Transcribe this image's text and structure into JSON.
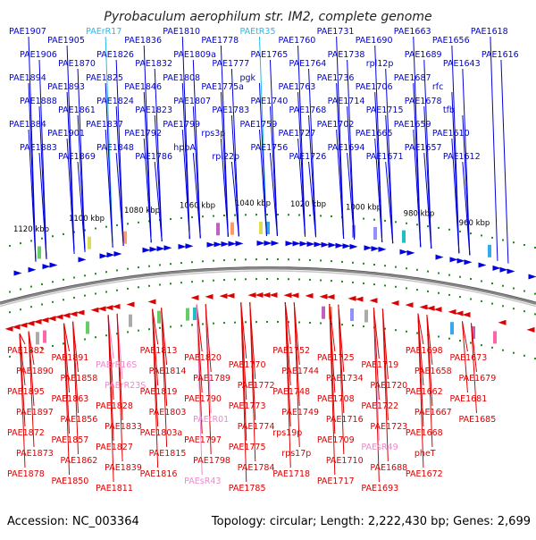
{
  "title": "Pyrobaculum aerophilum str. IM2, complete genome",
  "accession": "Accession: NC_003364",
  "summary": "Topology: circular; Length: 2,222,430 bp; Genes: 2,699",
  "colors": {
    "forward": "#0000dd",
    "reverse": "#dd0000",
    "trna": "#22bbee",
    "rna_rev": "#ee88cc",
    "backbone": "#888888",
    "tick": "#228822"
  },
  "scale": {
    "labels": [
      "1120 kbp",
      "1100 kbp",
      "1080 kbp",
      "1060 kbp",
      "1040 kbp",
      "1020 kbp",
      "1000 kbp",
      "980 kbp",
      "960 kbp"
    ],
    "positions_kbp": [
      1120,
      1100,
      1080,
      1060,
      1040,
      1020,
      1000,
      980,
      960
    ]
  },
  "forward_genes": [
    {
      "name": "PAE1907",
      "kind": "gene"
    },
    {
      "name": "PAE1906",
      "kind": "gene"
    },
    {
      "name": "PAE1894",
      "kind": "gene"
    },
    {
      "name": "PAE1888",
      "kind": "gene"
    },
    {
      "name": "PAE1884",
      "kind": "gene"
    },
    {
      "name": "PAE1883",
      "kind": "gene"
    },
    {
      "name": "PAE1905",
      "kind": "gene"
    },
    {
      "name": "PAE1870",
      "kind": "gene"
    },
    {
      "name": "PAE1893",
      "kind": "gene"
    },
    {
      "name": "PAE1861",
      "kind": "gene"
    },
    {
      "name": "PAE1901",
      "kind": "gene"
    },
    {
      "name": "PAE1869",
      "kind": "gene"
    },
    {
      "name": "PAErR17",
      "kind": "rna"
    },
    {
      "name": "PAE1826",
      "kind": "gene"
    },
    {
      "name": "PAE1825",
      "kind": "gene"
    },
    {
      "name": "PAE1824",
      "kind": "gene"
    },
    {
      "name": "PAE1837",
      "kind": "gene"
    },
    {
      "name": "PAE1848",
      "kind": "gene"
    },
    {
      "name": "PAE1836",
      "kind": "gene"
    },
    {
      "name": "PAE1832",
      "kind": "gene"
    },
    {
      "name": "PAE1846",
      "kind": "gene"
    },
    {
      "name": "PAE1823",
      "kind": "gene"
    },
    {
      "name": "PAE1792",
      "kind": "gene"
    },
    {
      "name": "PAE1786",
      "kind": "gene"
    },
    {
      "name": "PAE1810",
      "kind": "gene"
    },
    {
      "name": "PAE1809a",
      "kind": "gene"
    },
    {
      "name": "PAE1808",
      "kind": "gene"
    },
    {
      "name": "PAE1807",
      "kind": "gene"
    },
    {
      "name": "PAE1799",
      "kind": "gene"
    },
    {
      "name": "hppA",
      "kind": "gene"
    },
    {
      "name": "PAE1778",
      "kind": "gene"
    },
    {
      "name": "PAE1777",
      "kind": "gene"
    },
    {
      "name": "PAE1775a",
      "kind": "gene"
    },
    {
      "name": "PAE1783",
      "kind": "gene"
    },
    {
      "name": "rps3p",
      "kind": "gene"
    },
    {
      "name": "rpl22p",
      "kind": "gene"
    },
    {
      "name": "PAEtR35",
      "kind": "rna"
    },
    {
      "name": "PAE1765",
      "kind": "gene"
    },
    {
      "name": "pgk",
      "kind": "gene"
    },
    {
      "name": "PAE1740",
      "kind": "gene"
    },
    {
      "name": "PAE1759",
      "kind": "gene"
    },
    {
      "name": "PAE1756",
      "kind": "gene"
    },
    {
      "name": "PAE1760",
      "kind": "gene"
    },
    {
      "name": "PAE1764",
      "kind": "gene"
    },
    {
      "name": "PAE1763",
      "kind": "gene"
    },
    {
      "name": "PAE1768",
      "kind": "gene"
    },
    {
      "name": "PAE1727",
      "kind": "gene"
    },
    {
      "name": "PAE1726",
      "kind": "gene"
    },
    {
      "name": "PAE1731",
      "kind": "gene"
    },
    {
      "name": "PAE1738",
      "kind": "gene"
    },
    {
      "name": "PAE1736",
      "kind": "gene"
    },
    {
      "name": "PAE1714",
      "kind": "gene"
    },
    {
      "name": "PAE1702",
      "kind": "gene"
    },
    {
      "name": "PAE1694",
      "kind": "gene"
    },
    {
      "name": "PAE1690",
      "kind": "gene"
    },
    {
      "name": "rpl12p",
      "kind": "gene"
    },
    {
      "name": "PAE1706",
      "kind": "gene"
    },
    {
      "name": "PAE1715",
      "kind": "gene"
    },
    {
      "name": "PAE1665",
      "kind": "gene"
    },
    {
      "name": "PAE1671",
      "kind": "gene"
    },
    {
      "name": "PAE1663",
      "kind": "gene"
    },
    {
      "name": "PAE1689",
      "kind": "gene"
    },
    {
      "name": "PAE1687",
      "kind": "gene"
    },
    {
      "name": "PAE1678",
      "kind": "gene"
    },
    {
      "name": "PAE1659",
      "kind": "gene"
    },
    {
      "name": "PAE1657",
      "kind": "gene"
    },
    {
      "name": "PAE1656",
      "kind": "gene"
    },
    {
      "name": "PAE1643",
      "kind": "gene"
    },
    {
      "name": "rfc",
      "kind": "gene"
    },
    {
      "name": "tfb",
      "kind": "gene"
    },
    {
      "name": "PAE1610",
      "kind": "gene"
    },
    {
      "name": "PAE1612",
      "kind": "gene"
    },
    {
      "name": "PAE1618",
      "kind": "gene"
    },
    {
      "name": "PAE1616",
      "kind": "gene"
    }
  ],
  "reverse_genes": [
    {
      "name": "PAE1882",
      "kind": "gene"
    },
    {
      "name": "PAE1890",
      "kind": "gene"
    },
    {
      "name": "PAE1895",
      "kind": "gene"
    },
    {
      "name": "PAE1897",
      "kind": "gene"
    },
    {
      "name": "PAE1872",
      "kind": "gene"
    },
    {
      "name": "PAE1873",
      "kind": "gene"
    },
    {
      "name": "PAE1878",
      "kind": "gene"
    },
    {
      "name": "PAE1891",
      "kind": "gene"
    },
    {
      "name": "PAE1858",
      "kind": "gene"
    },
    {
      "name": "PAE1863",
      "kind": "gene"
    },
    {
      "name": "PAE1856",
      "kind": "gene"
    },
    {
      "name": "PAE1857",
      "kind": "gene"
    },
    {
      "name": "PAE1862",
      "kind": "gene"
    },
    {
      "name": "PAE1850",
      "kind": "gene"
    },
    {
      "name": "PAErR16S",
      "kind": "rna"
    },
    {
      "name": "PAErR23S",
      "kind": "rna"
    },
    {
      "name": "PAE1828",
      "kind": "gene"
    },
    {
      "name": "PAE1833",
      "kind": "gene"
    },
    {
      "name": "PAE1827",
      "kind": "gene"
    },
    {
      "name": "PAE1839",
      "kind": "gene"
    },
    {
      "name": "PAE1811",
      "kind": "gene"
    },
    {
      "name": "PAE1813",
      "kind": "gene"
    },
    {
      "name": "PAE1814",
      "kind": "gene"
    },
    {
      "name": "PAE1819",
      "kind": "gene"
    },
    {
      "name": "PAE1803",
      "kind": "gene"
    },
    {
      "name": "PAE1803a",
      "kind": "gene"
    },
    {
      "name": "PAE1815",
      "kind": "gene"
    },
    {
      "name": "PAE1816",
      "kind": "gene"
    },
    {
      "name": "PAE1820",
      "kind": "gene"
    },
    {
      "name": "PAE1789",
      "kind": "gene"
    },
    {
      "name": "PAE1790",
      "kind": "gene"
    },
    {
      "name": "PAEtR01",
      "kind": "rna"
    },
    {
      "name": "PAE1797",
      "kind": "gene"
    },
    {
      "name": "PAE1798",
      "kind": "gene"
    },
    {
      "name": "PAEsR43",
      "kind": "rna"
    },
    {
      "name": "PAE1770",
      "kind": "gene"
    },
    {
      "name": "PAE1772",
      "kind": "gene"
    },
    {
      "name": "PAE1773",
      "kind": "gene"
    },
    {
      "name": "PAE1774",
      "kind": "gene"
    },
    {
      "name": "PAE1775",
      "kind": "gene"
    },
    {
      "name": "PAE1784",
      "kind": "gene"
    },
    {
      "name": "PAE1785",
      "kind": "gene"
    },
    {
      "name": "PAE1752",
      "kind": "gene"
    },
    {
      "name": "PAE1744",
      "kind": "gene"
    },
    {
      "name": "PAE1748",
      "kind": "gene"
    },
    {
      "name": "PAE1749",
      "kind": "gene"
    },
    {
      "name": "rps19p",
      "kind": "gene"
    },
    {
      "name": "rps17p",
      "kind": "gene"
    },
    {
      "name": "PAE1718",
      "kind": "gene"
    },
    {
      "name": "PAE1725",
      "kind": "gene"
    },
    {
      "name": "PAE1734",
      "kind": "gene"
    },
    {
      "name": "PAE1708",
      "kind": "gene"
    },
    {
      "name": "PAE1716",
      "kind": "gene"
    },
    {
      "name": "PAE1709",
      "kind": "gene"
    },
    {
      "name": "PAE1710",
      "kind": "gene"
    },
    {
      "name": "PAE1717",
      "kind": "gene"
    },
    {
      "name": "PAE1719",
      "kind": "gene"
    },
    {
      "name": "PAE1720",
      "kind": "gene"
    },
    {
      "name": "PAE1722",
      "kind": "gene"
    },
    {
      "name": "PAE1723",
      "kind": "gene"
    },
    {
      "name": "PAEsR49",
      "kind": "rna"
    },
    {
      "name": "PAE1688",
      "kind": "gene"
    },
    {
      "name": "PAE1693",
      "kind": "gene"
    },
    {
      "name": "PAE1698",
      "kind": "gene"
    },
    {
      "name": "PAE1658",
      "kind": "gene"
    },
    {
      "name": "PAE1662",
      "kind": "gene"
    },
    {
      "name": "PAE1667",
      "kind": "gene"
    },
    {
      "name": "PAE1668",
      "kind": "gene"
    },
    {
      "name": "pheT",
      "kind": "gene"
    },
    {
      "name": "PAE1672",
      "kind": "gene"
    },
    {
      "name": "PAE1673",
      "kind": "gene"
    },
    {
      "name": "PAE1679",
      "kind": "gene"
    },
    {
      "name": "PAE1681",
      "kind": "gene"
    },
    {
      "name": "PAE1685",
      "kind": "gene"
    }
  ]
}
